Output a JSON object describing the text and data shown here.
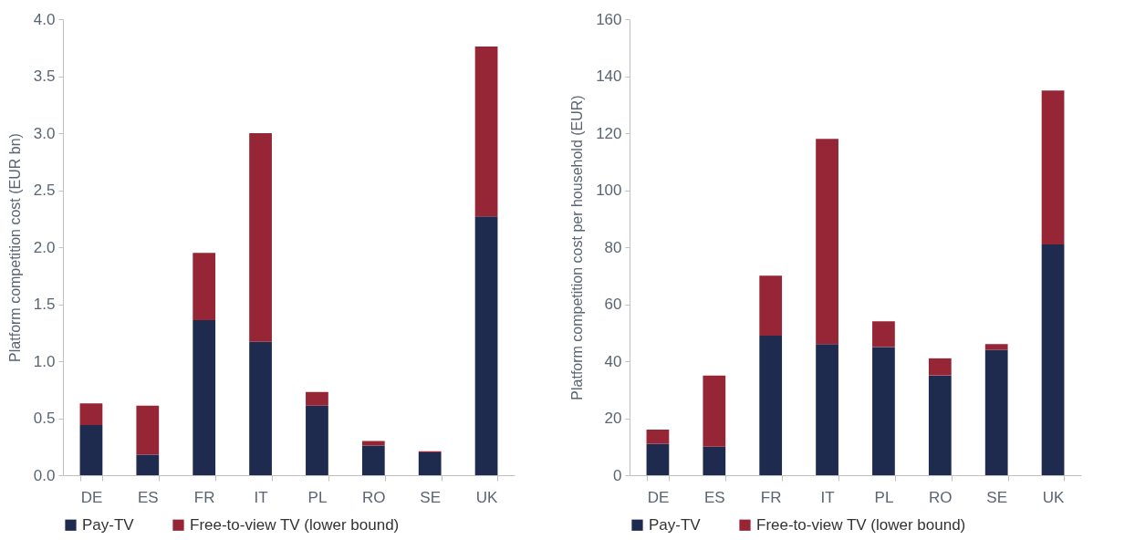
{
  "chart_data": [
    {
      "type": "bar",
      "stacked": true,
      "ylabel": "Platform competition cost (EUR bn)",
      "categories": [
        "DE",
        "ES",
        "FR",
        "IT",
        "PL",
        "RO",
        "SE",
        "UK"
      ],
      "ylim": [
        0,
        4.0
      ],
      "yticks": [
        {
          "value": 0,
          "label": "0.0"
        },
        0.5,
        {
          "value": 1,
          "label": "1.0"
        },
        1.5,
        {
          "value": 2,
          "label": "2.0"
        },
        2.5,
        {
          "value": 3,
          "label": "3.0"
        },
        3.5,
        {
          "value": 4,
          "label": "4.0"
        }
      ],
      "grid": false,
      "legend": "bottom",
      "series": [
        {
          "name": "Pay-TV",
          "color": "#1f2a4f",
          "values": [
            0.44,
            0.18,
            1.36,
            1.17,
            0.61,
            0.26,
            0.2,
            2.27
          ]
        },
        {
          "name": "Free-to-view TV (lower bound)",
          "color": "#962535",
          "values": [
            0.19,
            0.43,
            0.59,
            1.83,
            0.12,
            0.04,
            0.01,
            1.49
          ]
        }
      ]
    },
    {
      "type": "bar",
      "stacked": true,
      "ylabel": "Platform competition cost per household (EUR)",
      "categories": [
        "DE",
        "ES",
        "FR",
        "IT",
        "PL",
        "RO",
        "SE",
        "UK"
      ],
      "ylim": [
        0,
        160
      ],
      "yticks": [
        0,
        20,
        40,
        60,
        80,
        100,
        120,
        140,
        160
      ],
      "grid": false,
      "legend": "bottom",
      "series": [
        {
          "name": "Pay-TV",
          "color": "#1f2a4f",
          "values": [
            11,
            10,
            49,
            46,
            45,
            35,
            44,
            81
          ]
        },
        {
          "name": "Free-to-view TV (lower bound)",
          "color": "#962535",
          "values": [
            5,
            25,
            21,
            72,
            9,
            6,
            2,
            54
          ]
        }
      ]
    }
  ]
}
